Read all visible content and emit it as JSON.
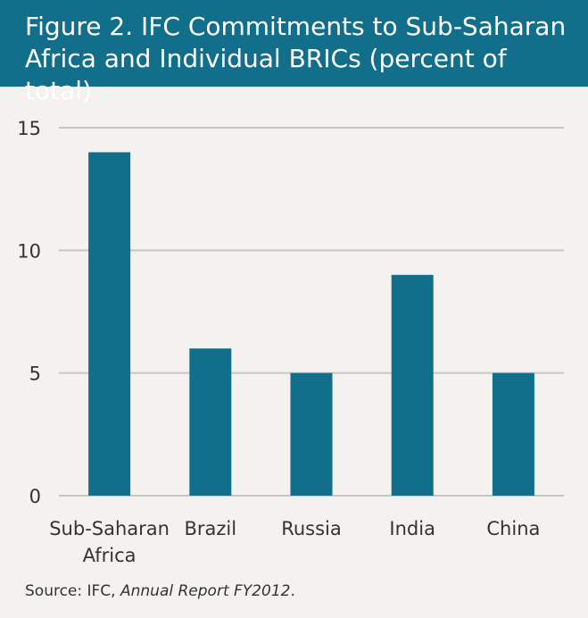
{
  "title": "Figure 2. IFC Commitments to Sub-Saharan Africa and Individual BRICs (percent of total)",
  "source": {
    "prefix": "Source: IFC, ",
    "italic": "Annual Report FY2012",
    "suffix": "."
  },
  "colors": {
    "header": "#126f8c",
    "bar": "#126f8c",
    "grid": "#c9c6c1",
    "background": "#f4f2ef"
  },
  "chart_data": {
    "type": "bar",
    "categories": [
      "Sub-Saharan\nAfrica",
      "Brazil",
      "Russia",
      "India",
      "China"
    ],
    "values": [
      14,
      6,
      5,
      9,
      5
    ],
    "yticks": [
      0,
      5,
      10,
      15
    ],
    "ylim": [
      0,
      15
    ],
    "grid": true
  }
}
